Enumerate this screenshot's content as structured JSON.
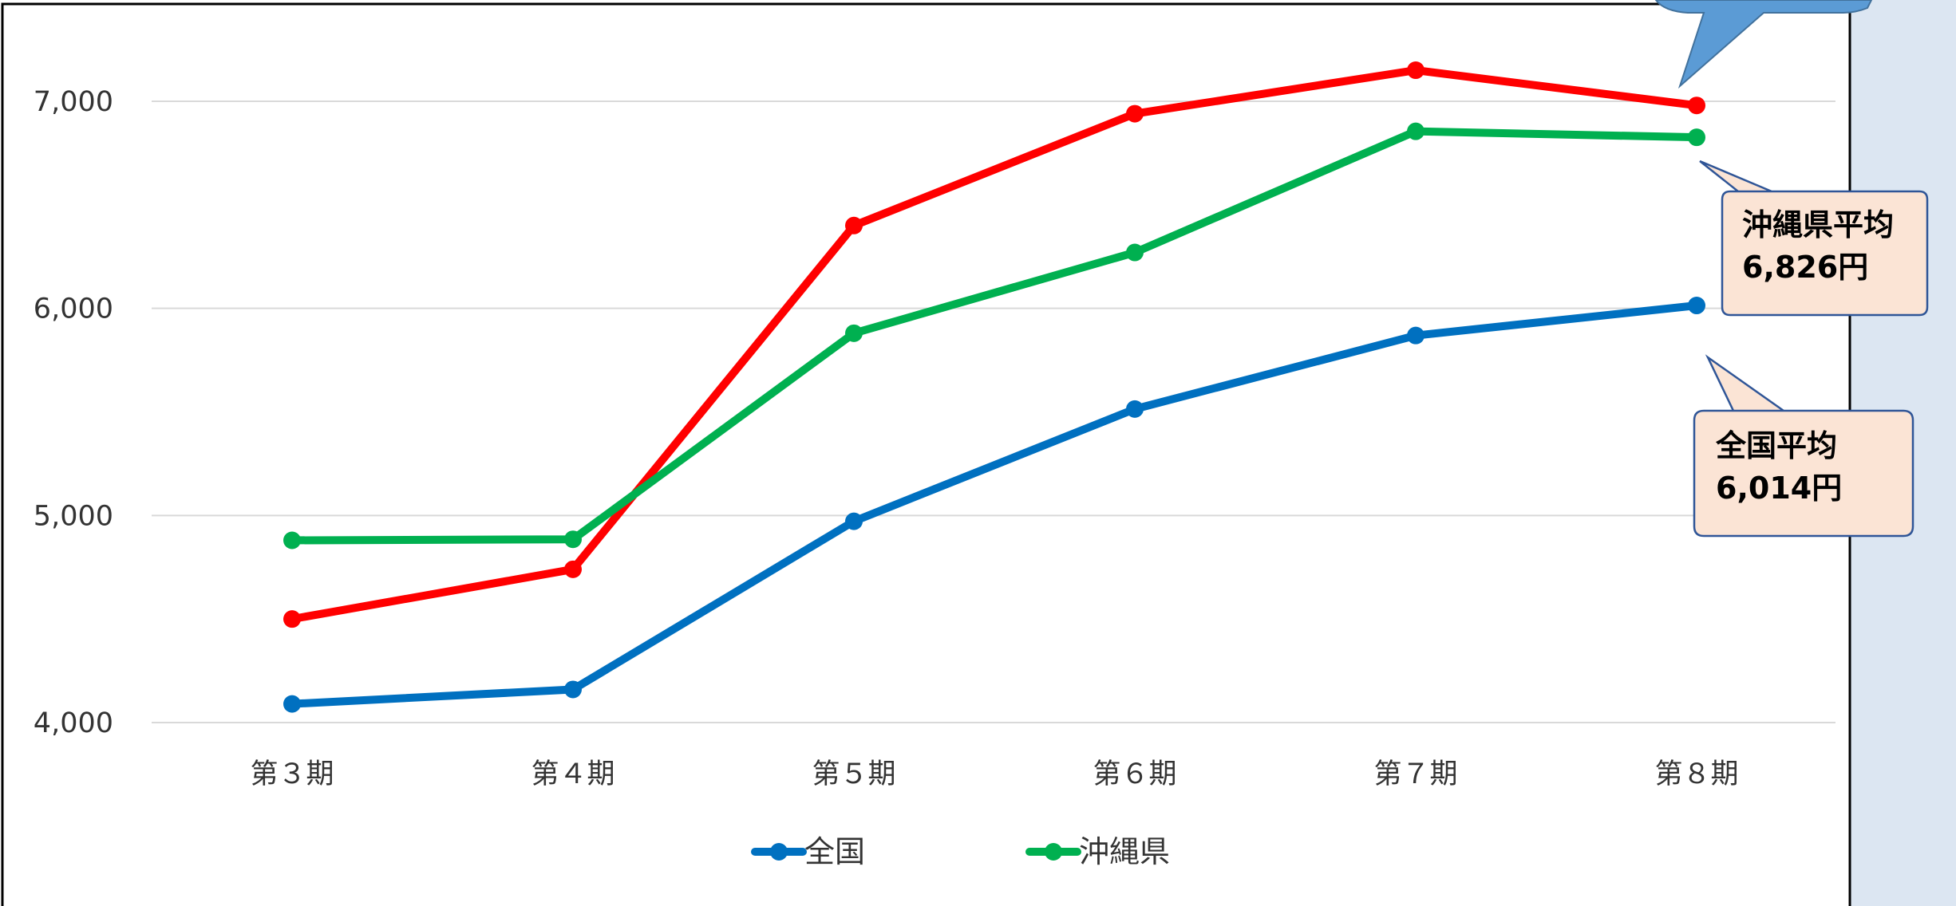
{
  "colors": {
    "national": "#0070c0",
    "okinawa": "#00b050",
    "third": "#ff0000",
    "grid": "#d9d9d9",
    "callout_fill": "#fbe4d5",
    "callout_stroke": "#2f5597",
    "side_panel": "#dce6f2",
    "arrow_fill": "#5b9bd5"
  },
  "chart_data": {
    "type": "line",
    "categories": [
      "第３期",
      "第４期",
      "第５期",
      "第６期",
      "第７期",
      "第８期"
    ],
    "yticks": [
      "4,000",
      "5,000",
      "6,000",
      "7,000"
    ],
    "ylim": [
      4000,
      7300
    ],
    "grid": true,
    "legend_position": "bottom",
    "series": [
      {
        "key": "third",
        "name": "",
        "color": "#ff0000",
        "values": [
          4500,
          4740,
          6400,
          6940,
          7150,
          6980
        ]
      },
      {
        "key": "okinawa",
        "name": "沖縄県",
        "color": "#00b050",
        "values": [
          4880,
          4885,
          5880,
          6270,
          6855,
          6826
        ]
      },
      {
        "key": "national",
        "name": "全国",
        "color": "#0070c0",
        "values": [
          4090,
          4160,
          4972,
          5514,
          5869,
          6014
        ]
      }
    ]
  },
  "legend": [
    {
      "key": "national",
      "label": "全国",
      "color": "#0070c0"
    },
    {
      "key": "okinawa",
      "label": "沖縄県",
      "color": "#00b050"
    }
  ],
  "callouts": {
    "okinawa": {
      "line1": "沖縄県平均",
      "line2": "6,826円"
    },
    "national": {
      "line1": "全国平均",
      "line2": "6,014円"
    }
  }
}
